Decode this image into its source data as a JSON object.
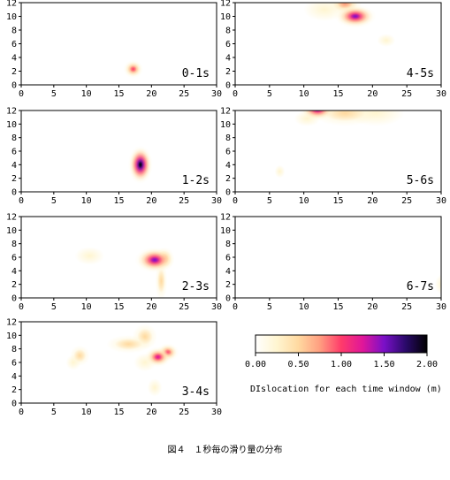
{
  "chart_data": [
    {
      "type": "heatmap",
      "title": "0-1s",
      "xlim": [
        0,
        30
      ],
      "ylim": [
        0,
        12
      ],
      "x_ticks": [
        0,
        5,
        10,
        15,
        20,
        25,
        30
      ],
      "y_ticks": [
        0,
        2,
        4,
        6,
        8,
        10,
        12
      ],
      "blobs": [
        {
          "x": 17.2,
          "y": 2.3,
          "sx": 0.8,
          "sy": 0.7,
          "value": 1.0
        }
      ]
    },
    {
      "type": "heatmap",
      "title": "4-5s",
      "xlim": [
        0,
        30
      ],
      "ylim": [
        0,
        12
      ],
      "x_ticks": [
        0,
        5,
        10,
        15,
        20,
        25,
        30
      ],
      "y_ticks": [
        0,
        2,
        4,
        6,
        8,
        10,
        12
      ],
      "blobs": [
        {
          "x": 17.5,
          "y": 10.0,
          "sx": 1.6,
          "sy": 0.9,
          "value": 1.55
        },
        {
          "x": 16.0,
          "y": 11.8,
          "sx": 1.3,
          "sy": 0.8,
          "value": 0.85
        },
        {
          "x": 13.0,
          "y": 11.0,
          "sx": 1.6,
          "sy": 0.9,
          "value": 0.35
        },
        {
          "x": 22.0,
          "y": 6.5,
          "sx": 0.7,
          "sy": 0.5,
          "value": 0.2
        }
      ]
    },
    {
      "type": "heatmap",
      "title": "1-2s",
      "xlim": [
        0,
        30
      ],
      "ylim": [
        0,
        12
      ],
      "x_ticks": [
        0,
        5,
        10,
        15,
        20,
        25,
        30
      ],
      "y_ticks": [
        0,
        2,
        4,
        6,
        8,
        10,
        12
      ],
      "blobs": [
        {
          "x": 18.3,
          "y": 4.0,
          "sx": 1.0,
          "sy": 1.5,
          "value": 2.0
        }
      ]
    },
    {
      "type": "heatmap",
      "title": "5-6s",
      "xlim": [
        0,
        30
      ],
      "ylim": [
        0,
        12
      ],
      "x_ticks": [
        0,
        5,
        10,
        15,
        20,
        25,
        30
      ],
      "y_ticks": [
        0,
        2,
        4,
        6,
        8,
        10,
        12
      ],
      "blobs": [
        {
          "x": 12.0,
          "y": 12.2,
          "sx": 1.4,
          "sy": 0.9,
          "value": 1.6
        },
        {
          "x": 16.0,
          "y": 11.6,
          "sx": 2.5,
          "sy": 1.0,
          "value": 0.6
        },
        {
          "x": 20.5,
          "y": 11.6,
          "sx": 2.2,
          "sy": 1.0,
          "value": 0.35
        },
        {
          "x": 10.5,
          "y": 10.8,
          "sx": 1.0,
          "sy": 0.6,
          "value": 0.25
        },
        {
          "x": 6.5,
          "y": 3.0,
          "sx": 0.4,
          "sy": 0.5,
          "value": 0.15
        }
      ]
    },
    {
      "type": "heatmap",
      "title": "2-3s",
      "xlim": [
        0,
        30
      ],
      "ylim": [
        0,
        12
      ],
      "x_ticks": [
        0,
        5,
        10,
        15,
        20,
        25,
        30
      ],
      "y_ticks": [
        0,
        2,
        4,
        6,
        8,
        10,
        12
      ],
      "blobs": [
        {
          "x": 20.5,
          "y": 5.6,
          "sx": 1.6,
          "sy": 1.0,
          "value": 1.4
        },
        {
          "x": 22.0,
          "y": 5.8,
          "sx": 0.8,
          "sy": 0.9,
          "value": 0.7
        },
        {
          "x": 21.5,
          "y": 2.5,
          "sx": 0.5,
          "sy": 1.5,
          "value": 0.4
        },
        {
          "x": 10.5,
          "y": 6.2,
          "sx": 1.2,
          "sy": 0.7,
          "value": 0.25
        }
      ]
    },
    {
      "type": "heatmap",
      "title": "6-7s",
      "xlim": [
        0,
        30
      ],
      "ylim": [
        0,
        12
      ],
      "x_ticks": [
        0,
        5,
        10,
        15,
        20,
        25,
        30
      ],
      "y_ticks": [
        0,
        2,
        4,
        6,
        8,
        10,
        12
      ],
      "blobs": [
        {
          "x": 30.2,
          "y": 2.0,
          "sx": 0.6,
          "sy": 0.8,
          "value": 0.15
        },
        {
          "x": 12.0,
          "y": 12.3,
          "sx": 1.0,
          "sy": 0.4,
          "value": 0.12
        }
      ]
    },
    {
      "type": "heatmap",
      "title": "3-4s",
      "xlim": [
        0,
        30
      ],
      "ylim": [
        0,
        12
      ],
      "x_ticks": [
        0,
        5,
        10,
        15,
        20,
        25,
        30
      ],
      "y_ticks": [
        0,
        2,
        4,
        6,
        8,
        10,
        12
      ],
      "blobs": [
        {
          "x": 21.0,
          "y": 6.8,
          "sx": 1.1,
          "sy": 0.8,
          "value": 1.35
        },
        {
          "x": 22.5,
          "y": 7.5,
          "sx": 0.9,
          "sy": 0.7,
          "value": 1.0
        },
        {
          "x": 16.5,
          "y": 8.7,
          "sx": 1.8,
          "sy": 0.7,
          "value": 0.55
        },
        {
          "x": 19.0,
          "y": 9.8,
          "sx": 1.0,
          "sy": 1.0,
          "value": 0.4
        },
        {
          "x": 19.0,
          "y": 6.0,
          "sx": 0.9,
          "sy": 0.7,
          "value": 0.35
        },
        {
          "x": 9.0,
          "y": 7.0,
          "sx": 0.8,
          "sy": 0.8,
          "value": 0.5
        },
        {
          "x": 8.0,
          "y": 6.0,
          "sx": 0.6,
          "sy": 0.6,
          "value": 0.25
        },
        {
          "x": 20.5,
          "y": 2.3,
          "sx": 0.6,
          "sy": 0.7,
          "value": 0.3
        }
      ]
    }
  ],
  "colorbar": {
    "ticks": [
      "0.00",
      "0.50",
      "1.00",
      "1.50",
      "2.00"
    ],
    "range": [
      0,
      2
    ],
    "label": "DIslocation for each time window (m)",
    "colors": [
      "#ffffff",
      "#fff5d0",
      "#ffd9a0",
      "#ff9e80",
      "#ff3b6a",
      "#e0169a",
      "#7a10c8",
      "#2a0a6a",
      "#000000"
    ]
  },
  "caption": "図４　１秒毎の滑り量の分布"
}
